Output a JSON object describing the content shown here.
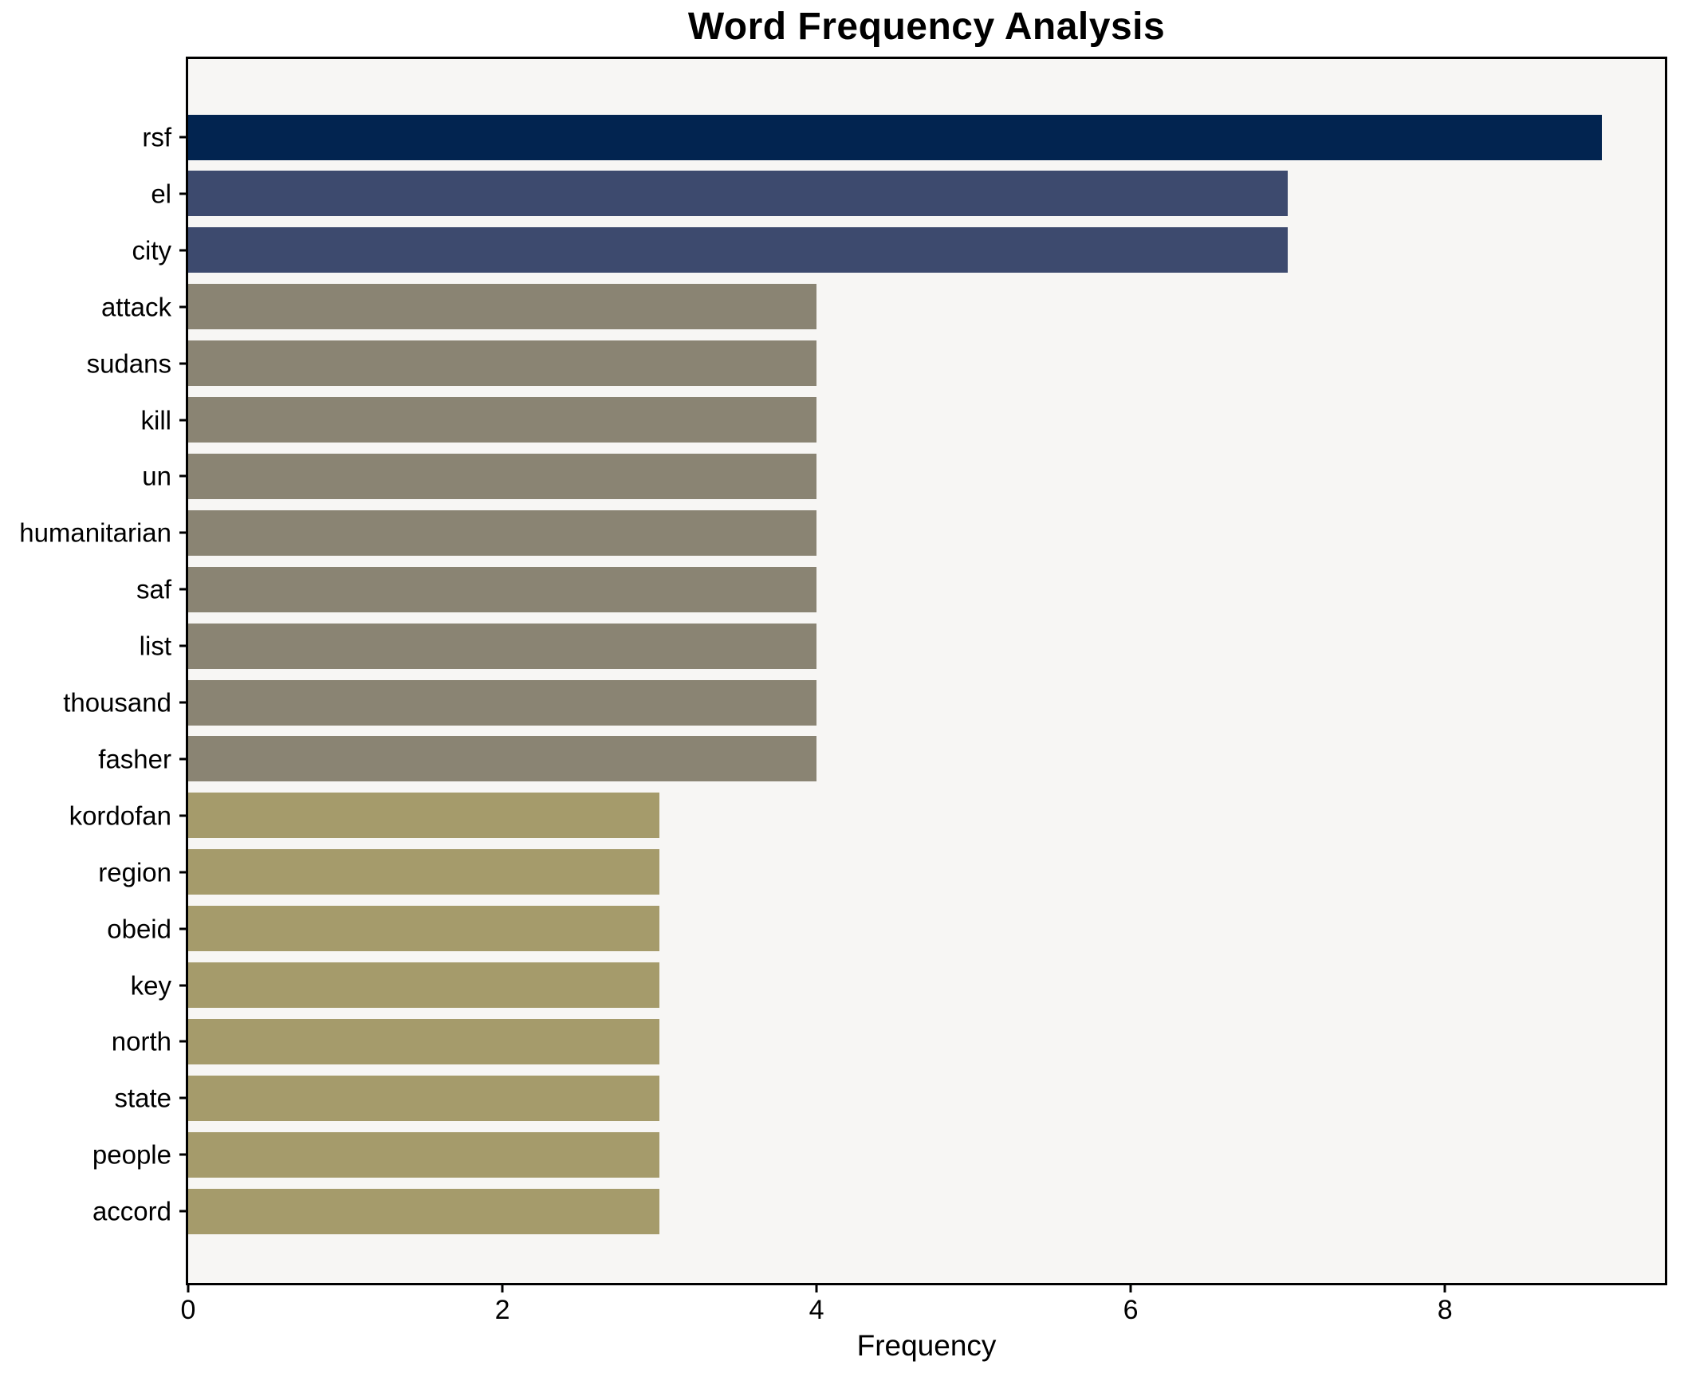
{
  "figure": {
    "background": "#ffffff",
    "text_color": "#000000"
  },
  "chart_data": {
    "type": "bar",
    "orientation": "horizontal",
    "title": "Word Frequency Analysis",
    "xlabel": "Frequency",
    "ylabel": "",
    "categories": [
      "rsf",
      "el",
      "city",
      "attack",
      "sudans",
      "kill",
      "un",
      "humanitarian",
      "saf",
      "list",
      "thousand",
      "fasher",
      "kordofan",
      "region",
      "obeid",
      "key",
      "north",
      "state",
      "people",
      "accord"
    ],
    "values": [
      9,
      7,
      7,
      4,
      4,
      4,
      4,
      4,
      4,
      4,
      4,
      4,
      3,
      3,
      3,
      3,
      3,
      3,
      3,
      3
    ],
    "bar_colors": [
      "#022450",
      "#3d4a6e",
      "#3d4a6e",
      "#8a8473",
      "#8a8473",
      "#8a8473",
      "#8a8473",
      "#8a8473",
      "#8a8473",
      "#8a8473",
      "#8a8473",
      "#8a8473",
      "#a59b6b",
      "#a59b6b",
      "#a59b6b",
      "#a59b6b",
      "#a59b6b",
      "#a59b6b",
      "#a59b6b",
      "#a59b6b"
    ],
    "xlim": [
      0,
      9.4
    ],
    "xticks": [
      0,
      2,
      4,
      6,
      8
    ],
    "grid": false,
    "legend": false,
    "plot_background": "#f7f6f4",
    "spine_color": "#000000"
  }
}
